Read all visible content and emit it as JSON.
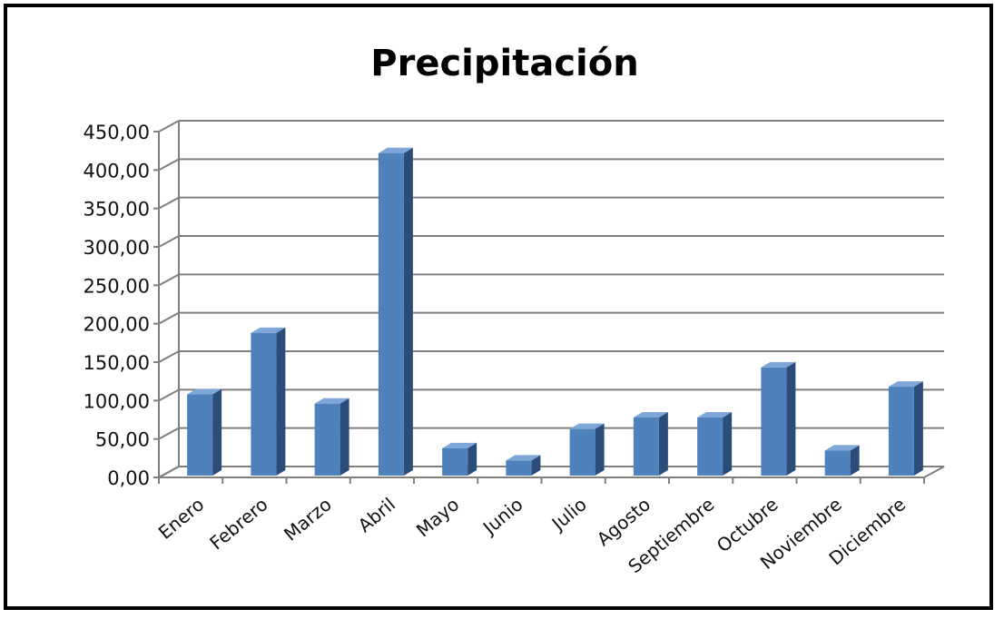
{
  "chart_data": {
    "type": "bar",
    "title": "Precipitación",
    "categories": [
      "Enero",
      "Febrero",
      "Marzo",
      "Abril",
      "Mayo",
      "Junio",
      "Julio",
      "Agosto",
      "Septiembre",
      "Octubre",
      "Noviembre",
      "Diciembre"
    ],
    "values": [
      108,
      188,
      96,
      422,
      38,
      22,
      63,
      78,
      78,
      143,
      35,
      118
    ],
    "ylim": [
      0,
      450
    ],
    "yticks": [
      "0,00",
      "50,00",
      "100,00",
      "150,00",
      "200,00",
      "250,00",
      "300,00",
      "350,00",
      "400,00",
      "450,00"
    ],
    "grid": true,
    "legend": "none",
    "colors": {
      "bar_front": "#4f81bd",
      "bar_side": "#2b4d7a",
      "bar_top": "#7ea6d8",
      "grid": "#7f7f7f"
    }
  }
}
